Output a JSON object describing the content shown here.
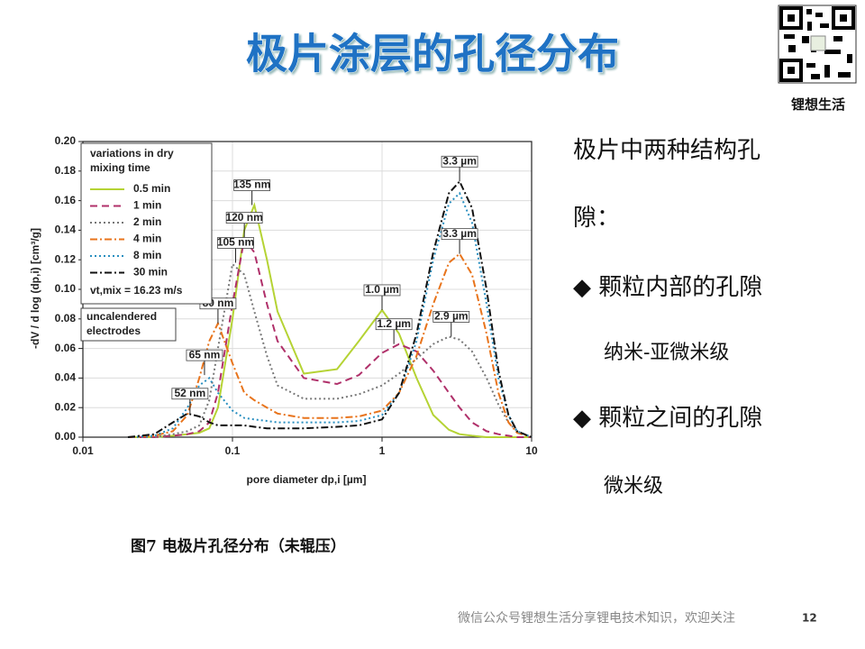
{
  "title": "极片涂层的孔径分布",
  "logo_label": "锂想生活",
  "chart_data": {
    "type": "line",
    "xlog": true,
    "grid": true,
    "xlabel": "pore diameter dp,i  [µm]",
    "ylabel": "-dV / d log (dp,i)  [cm³/g]",
    "xlim": [
      0.01,
      10
    ],
    "xticks": [
      0.01,
      0.1,
      1,
      10
    ],
    "ylim": [
      0,
      0.2
    ],
    "yticks": [
      {
        "value": 0,
        "label": "0.00"
      },
      0.02,
      0.04,
      0.06,
      0.08,
      {
        "value": 0.1,
        "label": "0.10"
      },
      0.12,
      0.14,
      0.16,
      0.18,
      {
        "value": 0.2,
        "label": "0.20"
      }
    ],
    "legend_title": [
      "variations in dry",
      "mixing time"
    ],
    "legend_note": "vt,mix = 16.23 m/s",
    "note_box": [
      "uncalendered",
      "electrodes"
    ],
    "x": [
      0.02,
      0.03,
      0.04,
      0.05,
      0.06,
      0.07,
      0.08,
      0.1,
      0.12,
      0.14,
      0.17,
      0.2,
      0.3,
      0.5,
      0.7,
      1.0,
      1.3,
      1.7,
      2.2,
      2.8,
      3.3,
      4,
      5,
      6,
      7,
      8,
      10
    ],
    "series": [
      {
        "name": "0.5 min",
        "color": "#b5d334",
        "style": "solid",
        "values": [
          0,
          0,
          0.001,
          0.002,
          0.003,
          0.006,
          0.02,
          0.08,
          0.14,
          0.157,
          0.12,
          0.085,
          0.043,
          0.046,
          0.065,
          0.086,
          0.07,
          0.04,
          0.015,
          0.005,
          0.002,
          0.001,
          0,
          0,
          0,
          0,
          0
        ]
      },
      {
        "name": "1 min",
        "color": "#b0306a",
        "style": "dashed",
        "values": [
          0,
          0,
          0.001,
          0.002,
          0.004,
          0.01,
          0.03,
          0.09,
          0.134,
          0.125,
          0.09,
          0.065,
          0.04,
          0.036,
          0.042,
          0.057,
          0.063,
          0.058,
          0.045,
          0.03,
          0.02,
          0.01,
          0.004,
          0.002,
          0.001,
          0,
          0
        ]
      },
      {
        "name": "2 min",
        "color": "#777777",
        "style": "dotted",
        "values": [
          0,
          0,
          0.002,
          0.004,
          0.008,
          0.025,
          0.06,
          0.117,
          0.11,
          0.085,
          0.055,
          0.035,
          0.026,
          0.026,
          0.029,
          0.035,
          0.043,
          0.053,
          0.063,
          0.068,
          0.066,
          0.058,
          0.04,
          0.022,
          0.01,
          0.004,
          0
        ]
      },
      {
        "name": "4 min",
        "color": "#e8741c",
        "style": "dashdot",
        "values": [
          0,
          0.001,
          0.004,
          0.015,
          0.04,
          0.065,
          0.077,
          0.05,
          0.03,
          0.025,
          0.02,
          0.016,
          0.013,
          0.013,
          0.014,
          0.018,
          0.03,
          0.055,
          0.09,
          0.118,
          0.124,
          0.11,
          0.07,
          0.03,
          0.01,
          0.003,
          0
        ]
      },
      {
        "name": "8 min",
        "color": "#2a8fc0",
        "style": "dotted",
        "values": [
          0,
          0.001,
          0.006,
          0.02,
          0.035,
          0.04,
          0.03,
          0.018,
          0.013,
          0.012,
          0.011,
          0.01,
          0.01,
          0.01,
          0.011,
          0.015,
          0.03,
          0.065,
          0.12,
          0.158,
          0.165,
          0.145,
          0.09,
          0.04,
          0.015,
          0.004,
          0
        ]
      },
      {
        "name": "30 min",
        "color": "#111111",
        "style": "dashdot",
        "values": [
          0,
          0.002,
          0.01,
          0.016,
          0.014,
          0.01,
          0.008,
          0.008,
          0.008,
          0.007,
          0.006,
          0.006,
          0.006,
          0.007,
          0.008,
          0.012,
          0.03,
          0.07,
          0.125,
          0.165,
          0.173,
          0.155,
          0.1,
          0.045,
          0.015,
          0.004,
          0
        ]
      }
    ],
    "annotations": [
      {
        "text": "135 nm",
        "x": 0.135,
        "y": 0.157
      },
      {
        "text": "120 nm",
        "x": 0.12,
        "y": 0.135
      },
      {
        "text": "105 nm",
        "x": 0.105,
        "y": 0.118
      },
      {
        "text": "80 nm",
        "x": 0.08,
        "y": 0.077
      },
      {
        "text": "65 nm",
        "x": 0.065,
        "y": 0.042
      },
      {
        "text": "52 nm",
        "x": 0.052,
        "y": 0.016
      },
      {
        "text": "1.0 µm",
        "x": 1.0,
        "y": 0.086
      },
      {
        "text": "1.2 µm",
        "x": 1.2,
        "y": 0.063
      },
      {
        "text": "3.3 µm",
        "x": 3.3,
        "y": 0.173
      },
      {
        "text": "3.3 µm",
        "x": 3.3,
        "y": 0.124
      },
      {
        "text": "2.9 µm",
        "x": 2.9,
        "y": 0.068
      }
    ]
  },
  "caption": "图7 电极片孔径分布（未辊压）",
  "heading": [
    "极片中两种结构孔",
    "隙："
  ],
  "bullets": [
    {
      "title": "◆ 颗粒内部的孔隙",
      "detail": "纳米-亚微米级"
    },
    {
      "title": "◆ 颗粒之间的孔隙",
      "detail": "微米级"
    }
  ],
  "footer": "微信公众号锂想生活分享锂电技术知识，欢迎关注",
  "page_number": "12"
}
